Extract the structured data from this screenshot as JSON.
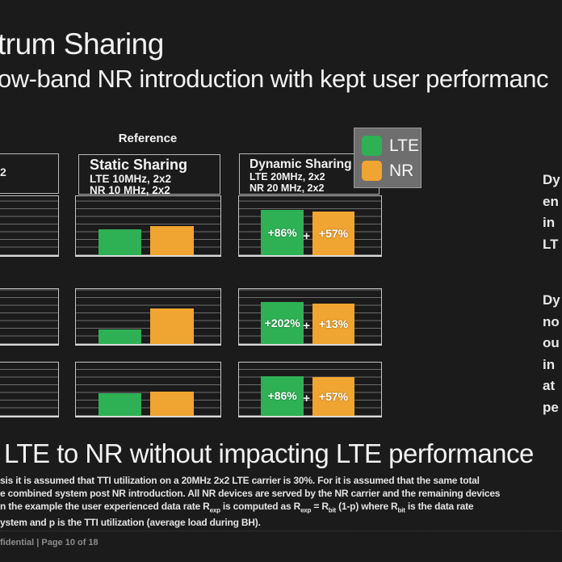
{
  "header": {
    "title": "trum Sharing",
    "subtitle": "ow-band NR introduction with kept user performanc"
  },
  "reference_label": "Reference",
  "boxes": {
    "left_fragment": "2",
    "static": {
      "title": "Static Sharing",
      "line1": "LTE 10MHz, 2x2",
      "line2": "NR 10 MHz, 2x2"
    },
    "dynamic": {
      "title": "Dynamic Sharing",
      "line1": "LTE 20MHz, 2x2",
      "line2": "NR 20 MHz, 2x2"
    }
  },
  "legend": {
    "items": [
      {
        "label": "LTE",
        "color": "#2eb155"
      },
      {
        "label": "NR",
        "color": "#f0a431"
      }
    ],
    "background": "#6e6e6e"
  },
  "chart_data": {
    "type": "bar",
    "title": "LTE vs NR throughput: Static Sharing (reference) vs Dynamic Sharing",
    "legend_entries": [
      "LTE",
      "NR"
    ],
    "grid": "horizontal gridlines, unlabeled axes",
    "unit": "bar heights estimated as % of chart vertical range",
    "rows": [
      {
        "name": "row-1",
        "static": {
          "lte": 44,
          "nr": 49
        },
        "dynamic": {
          "lte": 77,
          "nr": 74,
          "lte_label": "+86%",
          "nr_label": "+57%",
          "plus": "+"
        }
      },
      {
        "name": "row-2",
        "static": {
          "lte": 26,
          "nr": 64
        },
        "dynamic": {
          "lte": 76,
          "nr": 73,
          "lte_label": "+202%",
          "nr_label": "+13%",
          "plus": "+"
        }
      },
      {
        "name": "row-3",
        "static": {
          "lte": 43,
          "nr": 46
        },
        "dynamic": {
          "lte": 75,
          "nr": 72,
          "lte_label": "+86%",
          "nr_label": "+57%",
          "plus": "+"
        }
      }
    ]
  },
  "right_notes": {
    "block1": [
      "Dy",
      "en",
      "in",
      "LT"
    ],
    "block2": [
      "Dy",
      "no",
      "ou",
      "in",
      "at",
      "pe"
    ]
  },
  "bottom": {
    "heading": "LTE to NR without impacting LTE performance",
    "footnote_line1": "sis it is assumed that TTI utilization on a 20MHz 2x2 LTE carrier is 30%. For it is assumed that the same total",
    "footnote_line2": "e combined system post NR introduction.  All NR devices are served by the NR carrier and the remaining devices",
    "footnote_line3": {
      "t0": "n the example the user experienced data rate R",
      "s0": "exp",
      "t1": "  is computed as R",
      "s1": "exp",
      "t2": " = R",
      "s2": "bit",
      "t3": " (1-p) where R",
      "s3": "bit",
      "t4": " is the data rate"
    },
    "footnote_line4": "ystem and p is the TTI utilization (average load during BH)."
  },
  "footer": {
    "text": "fidential | Page 10 of 18"
  }
}
